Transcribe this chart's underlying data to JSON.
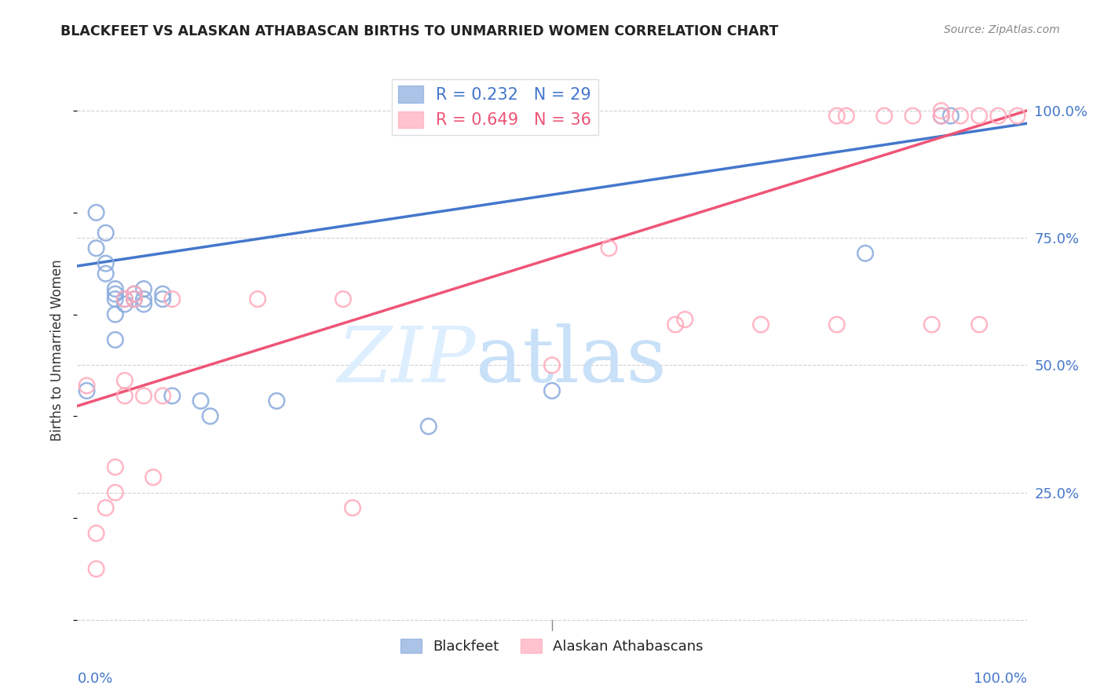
{
  "title": "BLACKFEET VS ALASKAN ATHABASCAN BIRTHS TO UNMARRIED WOMEN CORRELATION CHART",
  "source": "Source: ZipAtlas.com",
  "ylabel": "Births to Unmarried Women",
  "xlim": [
    0.0,
    1.0
  ],
  "ylim": [
    -0.02,
    1.08
  ],
  "ytick_vals": [
    0.0,
    0.25,
    0.5,
    0.75,
    1.0
  ],
  "ytick_labels": [
    "",
    "25.0%",
    "50.0%",
    "75.0%",
    "100.0%"
  ],
  "xtick_vals": [
    0.0,
    1.0
  ],
  "xtick_labels": [
    "0.0%",
    "100.0%"
  ],
  "watermark_line1": "ZIP",
  "watermark_line2": "atlas",
  "legend_entries": [
    {
      "label": "R = 0.232   N = 29",
      "color": "#6699CC"
    },
    {
      "label": "R = 0.649   N = 36",
      "color": "#FF99AA"
    }
  ],
  "bottom_legend_entries": [
    {
      "label": "Blackfeet",
      "color": "#6699CC"
    },
    {
      "label": "Alaskan Athabascans",
      "color": "#FF99AA"
    }
  ],
  "blue_scatter_x": [
    0.01,
    0.02,
    0.02,
    0.03,
    0.03,
    0.03,
    0.04,
    0.04,
    0.04,
    0.04,
    0.04,
    0.05,
    0.05,
    0.06,
    0.06,
    0.07,
    0.07,
    0.07,
    0.09,
    0.09,
    0.1,
    0.13,
    0.14,
    0.21,
    0.37,
    0.5,
    0.83,
    0.91,
    0.92
  ],
  "blue_scatter_y": [
    0.45,
    0.8,
    0.73,
    0.68,
    0.7,
    0.76,
    0.63,
    0.64,
    0.65,
    0.55,
    0.6,
    0.62,
    0.63,
    0.63,
    0.64,
    0.62,
    0.63,
    0.65,
    0.63,
    0.64,
    0.44,
    0.43,
    0.4,
    0.43,
    0.38,
    0.45,
    0.72,
    0.99,
    0.99
  ],
  "pink_scatter_x": [
    0.01,
    0.02,
    0.02,
    0.03,
    0.04,
    0.04,
    0.05,
    0.05,
    0.05,
    0.06,
    0.06,
    0.07,
    0.08,
    0.09,
    0.1,
    0.19,
    0.28,
    0.29,
    0.5,
    0.56,
    0.63,
    0.64,
    0.72,
    0.8,
    0.8,
    0.81,
    0.85,
    0.88,
    0.9,
    0.91,
    0.91,
    0.93,
    0.95,
    0.95,
    0.97,
    0.99
  ],
  "pink_scatter_y": [
    0.46,
    0.1,
    0.17,
    0.22,
    0.25,
    0.3,
    0.44,
    0.47,
    0.63,
    0.63,
    0.64,
    0.44,
    0.28,
    0.44,
    0.63,
    0.63,
    0.63,
    0.22,
    0.5,
    0.73,
    0.58,
    0.59,
    0.58,
    0.58,
    0.99,
    0.99,
    0.99,
    0.99,
    0.58,
    0.99,
    1.0,
    0.99,
    0.58,
    0.99,
    0.99,
    0.99
  ],
  "blue_line": [
    0.0,
    1.0,
    0.695,
    0.975
  ],
  "pink_line": [
    0.0,
    1.0,
    0.42,
    1.0
  ],
  "blue_scatter_color": "#88AADD",
  "blue_scatter_edge": "#88AADD",
  "pink_scatter_color": "#FFAABB",
  "pink_scatter_edge": "#FFAABB",
  "blue_line_color": "#4477CC",
  "pink_line_color": "#EE5577",
  "grid_color": "#CCCCCC",
  "title_color": "#222222",
  "axis_tick_color": "#4477CC",
  "ylabel_color": "#333333",
  "source_color": "#888888",
  "background_color": "#FFFFFF",
  "watermark_color": "#DDEEFF"
}
